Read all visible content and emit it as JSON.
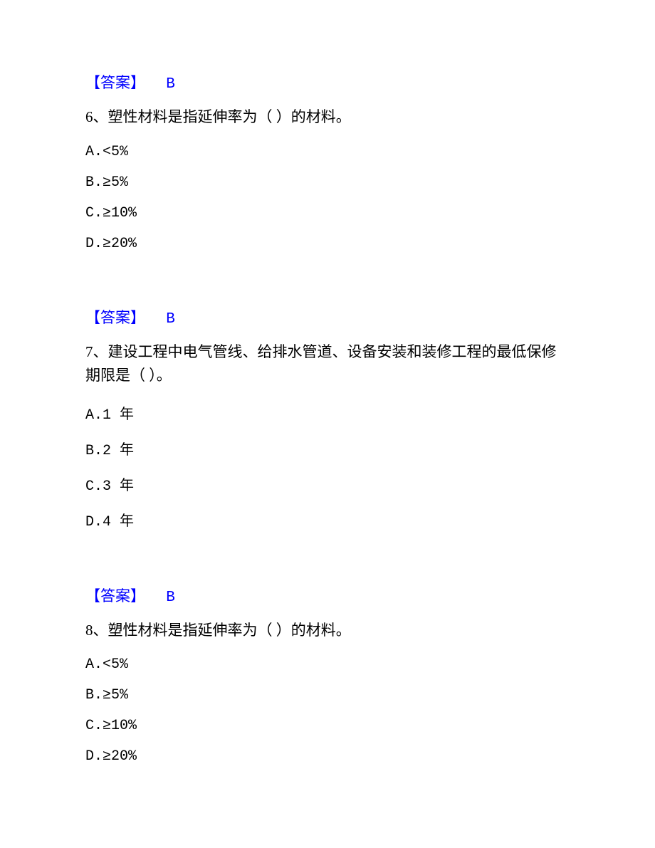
{
  "colors": {
    "answer_color": "#0000ff",
    "text_color": "#000000",
    "background_color": "#ffffff"
  },
  "typography": {
    "base_fontsize": 21,
    "font_family": "SimSun"
  },
  "answers": {
    "a5": {
      "label": "【答案】",
      "value": "B"
    },
    "a6": {
      "label": "【答案】",
      "value": "B"
    },
    "a7": {
      "label": "【答案】",
      "value": "B"
    }
  },
  "questions": {
    "q6": {
      "text": "6、塑性材料是指延伸率为（  ）的材料。",
      "options": {
        "a": "A.<5%",
        "b": "B.≥5%",
        "c": "C.≥10%",
        "d": "D.≥20%"
      }
    },
    "q7": {
      "text": "7、建设工程中电气管线、给排水管道、设备安装和装修工程的最低保修期限是（  ）。",
      "options": {
        "a": "A.1 年",
        "b": "B.2 年",
        "c": "C.3 年",
        "d": "D.4 年"
      }
    },
    "q8": {
      "text": "8、塑性材料是指延伸率为（  ）的材料。",
      "options": {
        "a": "A.<5%",
        "b": "B.≥5%",
        "c": "C.≥10%",
        "d": "D.≥20%"
      }
    }
  }
}
